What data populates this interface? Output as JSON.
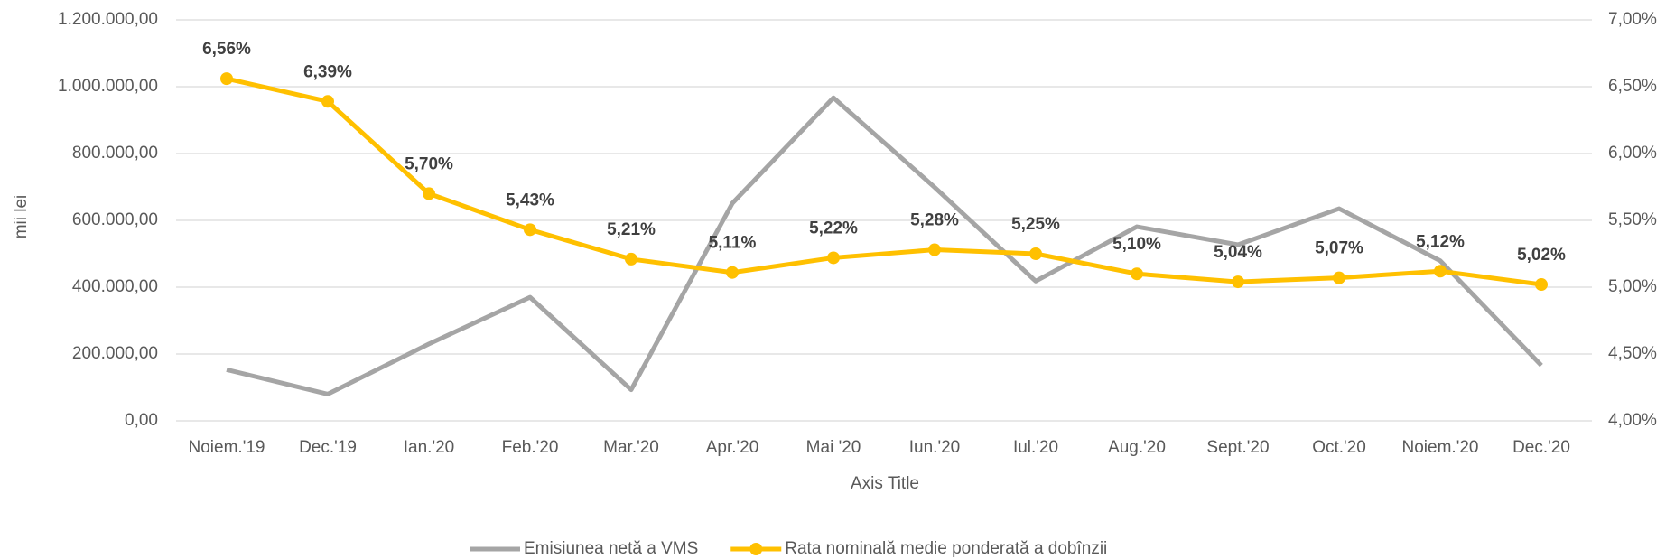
{
  "chart_data": {
    "type": "line",
    "ylabel": "mii lei",
    "xlabel": "Axis Title",
    "categories": [
      "Noiem.'19",
      "Dec.'19",
      "Ian.'20",
      "Feb.'20",
      "Mar.'20",
      "Apr.'20",
      "Mai '20",
      "Iun.'20",
      "Iul.'20",
      "Aug.'20",
      "Sept.'20",
      "Oct.'20",
      "Noiem.'20",
      "Dec.'20"
    ],
    "series": [
      {
        "name": "Emisiunea netă a VMS",
        "color": "#a5a5a5",
        "values": [
          153000,
          80000,
          230000,
          370000,
          93000,
          651000,
          967000,
          699000,
          418000,
          581000,
          527000,
          635000,
          479000,
          166000
        ]
      },
      {
        "name": "Rata nominală medie ponderată a dobînzii",
        "color": "#ffc000",
        "axis": "y2",
        "values": [
          6.56,
          6.39,
          5.7,
          5.43,
          5.21,
          5.11,
          5.22,
          5.28,
          5.25,
          5.1,
          5.04,
          5.07,
          5.12,
          5.02
        ],
        "value_labels": [
          "6,56%",
          "6,39%",
          "5,70%",
          "5,43%",
          "5,21%",
          "5,11%",
          "5,22%",
          "5,28%",
          "5,25%",
          "5,10%",
          "5,04%",
          "5,07%",
          "5,12%",
          "5,02%"
        ]
      }
    ],
    "ylim": [
      0,
      1200000
    ],
    "yticks": [
      {
        "value": 0,
        "label": "0,00"
      },
      {
        "value": 200000,
        "label": "200.000,00"
      },
      {
        "value": 400000,
        "label": "400.000,00"
      },
      {
        "value": 600000,
        "label": "600.000,00"
      },
      {
        "value": 800000,
        "label": "800.000,00"
      },
      {
        "value": 1000000,
        "label": "1.000.000,00"
      },
      {
        "value": 1200000,
        "label": "1.200.000,00"
      }
    ],
    "y2lim": [
      4,
      7
    ],
    "y2ticks": [
      {
        "value": 4,
        "label": "4,00%"
      },
      {
        "value": 4.5,
        "label": "4,50%"
      },
      {
        "value": 5,
        "label": "5,00%"
      },
      {
        "value": 5.5,
        "label": "5,50%"
      },
      {
        "value": 6,
        "label": "6,00%"
      },
      {
        "value": 6.5,
        "label": "6,50%"
      },
      {
        "value": 7,
        "label": "7,00%"
      }
    ],
    "grid": true,
    "legend": "bottom"
  }
}
